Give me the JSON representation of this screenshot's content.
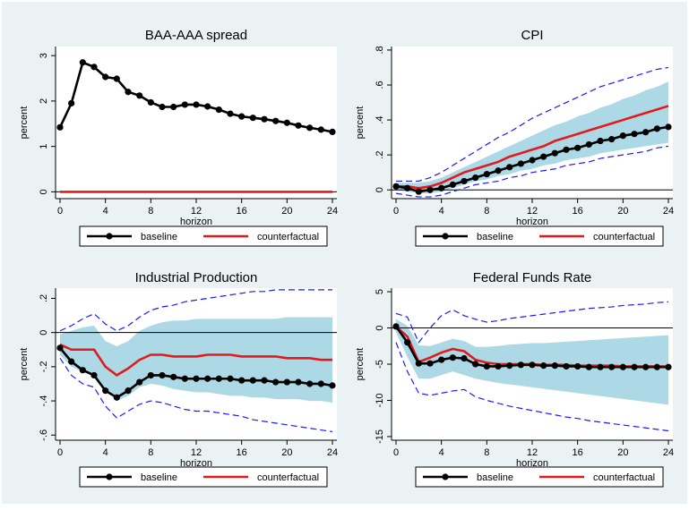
{
  "colors": {
    "background": "#ffffff",
    "panel_bg": "#eaf2f3",
    "plot_bg": "#ffffff",
    "band": "#add8e6",
    "ci_line": "#1a1aff",
    "baseline": "#000000",
    "counterfactual": "#e31a1c",
    "zero_line": "#000000",
    "legend_border": "#000000"
  },
  "chart_data": [
    {
      "type": "line",
      "title": "BAA-AAA spread",
      "xlabel": "horizon",
      "ylabel": "percent",
      "xlim": [
        0,
        24
      ],
      "ylim": [
        -0.15,
        3.2
      ],
      "xticks": [
        0,
        4,
        8,
        12,
        16,
        20,
        24
      ],
      "yticks": [
        0,
        1,
        2,
        3
      ],
      "ytick_labels": [
        "0",
        "1",
        "2",
        "3"
      ],
      "x": [
        0,
        1,
        2,
        3,
        4,
        5,
        6,
        7,
        8,
        9,
        10,
        11,
        12,
        13,
        14,
        15,
        16,
        17,
        18,
        19,
        20,
        21,
        22,
        23,
        24
      ],
      "series": [
        {
          "name": "baseline",
          "values": [
            1.42,
            1.95,
            2.85,
            2.75,
            2.53,
            2.49,
            2.2,
            2.12,
            1.97,
            1.87,
            1.87,
            1.92,
            1.92,
            1.88,
            1.81,
            1.72,
            1.66,
            1.63,
            1.6,
            1.56,
            1.52,
            1.46,
            1.41,
            1.37,
            1.32
          ]
        },
        {
          "name": "counterfactual",
          "values": [
            0,
            0,
            0,
            0,
            0,
            0,
            0,
            0,
            0,
            0,
            0,
            0,
            0,
            0,
            0,
            0,
            0,
            0,
            0,
            0,
            0,
            0,
            0,
            0,
            0
          ]
        }
      ],
      "band_lower": null,
      "band_upper": null,
      "ci_lower": null,
      "ci_upper": null,
      "legend": [
        "baseline",
        "counterfactual"
      ],
      "legend_position": "bottom"
    },
    {
      "type": "line",
      "title": "CPI",
      "xlabel": "horizon",
      "ylabel": "percent",
      "xlim": [
        0,
        24
      ],
      "ylim": [
        -0.05,
        0.82
      ],
      "xticks": [
        0,
        4,
        8,
        12,
        16,
        20,
        24
      ],
      "yticks": [
        0,
        0.2,
        0.4,
        0.6,
        0.8
      ],
      "ytick_labels": [
        "0",
        ".2",
        ".4",
        ".6",
        ".8"
      ],
      "x": [
        0,
        1,
        2,
        3,
        4,
        5,
        6,
        7,
        8,
        9,
        10,
        11,
        12,
        13,
        14,
        15,
        16,
        17,
        18,
        19,
        20,
        21,
        22,
        23,
        24
      ],
      "series": [
        {
          "name": "baseline",
          "values": [
            0.02,
            0.01,
            -0.01,
            0.0,
            0.01,
            0.03,
            0.05,
            0.07,
            0.09,
            0.11,
            0.13,
            0.15,
            0.17,
            0.19,
            0.21,
            0.23,
            0.24,
            0.26,
            0.28,
            0.29,
            0.31,
            0.32,
            0.33,
            0.35,
            0.36
          ]
        },
        {
          "name": "counterfactual",
          "values": [
            0.02,
            0.02,
            0.01,
            0.02,
            0.04,
            0.07,
            0.1,
            0.12,
            0.14,
            0.16,
            0.19,
            0.21,
            0.23,
            0.25,
            0.28,
            0.3,
            0.32,
            0.34,
            0.36,
            0.38,
            0.4,
            0.42,
            0.44,
            0.46,
            0.48
          ]
        }
      ],
      "band_lower": [
        0.0,
        -0.01,
        -0.02,
        -0.02,
        -0.01,
        0.01,
        0.03,
        0.05,
        0.06,
        0.08,
        0.09,
        0.11,
        0.12,
        0.14,
        0.15,
        0.17,
        0.18,
        0.19,
        0.21,
        0.22,
        0.23,
        0.24,
        0.25,
        0.26,
        0.27
      ],
      "band_upper": [
        0.04,
        0.04,
        0.04,
        0.05,
        0.07,
        0.1,
        0.13,
        0.16,
        0.19,
        0.22,
        0.25,
        0.28,
        0.31,
        0.34,
        0.37,
        0.39,
        0.42,
        0.44,
        0.47,
        0.49,
        0.52,
        0.54,
        0.57,
        0.59,
        0.62
      ],
      "ci_lower": [
        -0.02,
        -0.03,
        -0.04,
        -0.04,
        -0.03,
        -0.01,
        0.01,
        0.03,
        0.04,
        0.05,
        0.07,
        0.08,
        0.1,
        0.11,
        0.12,
        0.14,
        0.15,
        0.16,
        0.18,
        0.19,
        0.2,
        0.21,
        0.22,
        0.24,
        0.25
      ],
      "ci_upper": [
        0.05,
        0.05,
        0.05,
        0.07,
        0.1,
        0.14,
        0.18,
        0.22,
        0.26,
        0.3,
        0.33,
        0.37,
        0.41,
        0.44,
        0.47,
        0.5,
        0.53,
        0.56,
        0.59,
        0.61,
        0.63,
        0.65,
        0.67,
        0.69,
        0.7
      ],
      "legend": [
        "baseline",
        "counterfactual"
      ],
      "legend_position": "bottom"
    },
    {
      "type": "line",
      "title": "Industrial Production",
      "xlabel": "horizon",
      "ylabel": "percent",
      "xlim": [
        0,
        24
      ],
      "ylim": [
        -0.63,
        0.26
      ],
      "xticks": [
        0,
        4,
        8,
        12,
        16,
        20,
        24
      ],
      "yticks": [
        -0.6,
        -0.4,
        -0.2,
        0,
        0.2
      ],
      "ytick_labels": [
        "-.6",
        "-.4",
        "-.2",
        "0",
        ".2"
      ],
      "x": [
        0,
        1,
        2,
        3,
        4,
        5,
        6,
        7,
        8,
        9,
        10,
        11,
        12,
        13,
        14,
        15,
        16,
        17,
        18,
        19,
        20,
        21,
        22,
        23,
        24
      ],
      "series": [
        {
          "name": "baseline",
          "values": [
            -0.09,
            -0.17,
            -0.22,
            -0.25,
            -0.34,
            -0.38,
            -0.34,
            -0.29,
            -0.25,
            -0.25,
            -0.26,
            -0.27,
            -0.27,
            -0.27,
            -0.27,
            -0.27,
            -0.28,
            -0.28,
            -0.28,
            -0.29,
            -0.29,
            -0.29,
            -0.3,
            -0.3,
            -0.31
          ]
        },
        {
          "name": "counterfactual",
          "values": [
            -0.07,
            -0.1,
            -0.1,
            -0.1,
            -0.2,
            -0.25,
            -0.21,
            -0.16,
            -0.13,
            -0.13,
            -0.14,
            -0.14,
            -0.14,
            -0.13,
            -0.13,
            -0.13,
            -0.14,
            -0.14,
            -0.14,
            -0.14,
            -0.15,
            -0.15,
            -0.15,
            -0.16,
            -0.16
          ]
        }
      ],
      "band_lower": [
        -0.13,
        -0.2,
        -0.23,
        -0.24,
        -0.33,
        -0.4,
        -0.37,
        -0.32,
        -0.3,
        -0.31,
        -0.33,
        -0.34,
        -0.35,
        -0.35,
        -0.36,
        -0.37,
        -0.37,
        -0.38,
        -0.38,
        -0.39,
        -0.39,
        -0.39,
        -0.4,
        -0.4,
        -0.41
      ],
      "band_upper": [
        -0.01,
        0.01,
        0.03,
        0.04,
        -0.05,
        -0.08,
        -0.05,
        0.01,
        0.04,
        0.06,
        0.07,
        0.07,
        0.08,
        0.08,
        0.08,
        0.08,
        0.08,
        0.08,
        0.08,
        0.08,
        0.09,
        0.09,
        0.09,
        0.09,
        0.09
      ],
      "ci_lower": [
        -0.15,
        -0.25,
        -0.3,
        -0.32,
        -0.43,
        -0.5,
        -0.46,
        -0.42,
        -0.4,
        -0.41,
        -0.43,
        -0.45,
        -0.46,
        -0.46,
        -0.47,
        -0.48,
        -0.49,
        -0.51,
        -0.52,
        -0.53,
        -0.54,
        -0.55,
        -0.56,
        -0.57,
        -0.58
      ],
      "ci_upper": [
        0.01,
        0.04,
        0.08,
        0.11,
        0.05,
        0.01,
        0.04,
        0.09,
        0.13,
        0.15,
        0.16,
        0.18,
        0.19,
        0.2,
        0.21,
        0.22,
        0.23,
        0.24,
        0.24,
        0.25,
        0.25,
        0.25,
        0.25,
        0.25,
        0.25
      ],
      "legend": [
        "baseline",
        "counterfactual"
      ],
      "legend_position": "bottom"
    },
    {
      "type": "line",
      "title": "Federal Funds Rate",
      "xlabel": "horizon",
      "ylabel": "percent",
      "xlim": [
        0,
        24
      ],
      "ylim": [
        -15.5,
        5.5
      ],
      "xticks": [
        0,
        4,
        8,
        12,
        16,
        20,
        24
      ],
      "yticks": [
        -15,
        -10,
        -5,
        0,
        5
      ],
      "ytick_labels": [
        "-15",
        "-10",
        "-5",
        "0",
        "5"
      ],
      "x": [
        0,
        1,
        2,
        3,
        4,
        5,
        6,
        7,
        8,
        9,
        10,
        11,
        12,
        13,
        14,
        15,
        16,
        17,
        18,
        19,
        20,
        21,
        22,
        23,
        24
      ],
      "series": [
        {
          "name": "baseline",
          "values": [
            0.2,
            -2.0,
            -4.9,
            -4.9,
            -4.4,
            -4.1,
            -4.2,
            -5.0,
            -5.3,
            -5.3,
            -5.2,
            -5.1,
            -5.1,
            -5.2,
            -5.2,
            -5.3,
            -5.3,
            -5.4,
            -5.4,
            -5.4,
            -5.4,
            -5.4,
            -5.4,
            -5.4,
            -5.4
          ]
        },
        {
          "name": "counterfactual",
          "values": [
            0.2,
            -1.2,
            -4.7,
            -4.1,
            -3.4,
            -2.9,
            -3.2,
            -4.4,
            -4.8,
            -5.0,
            -5.0,
            -5.0,
            -5.0,
            -5.1,
            -5.1,
            -5.1,
            -5.2,
            -5.2,
            -5.2,
            -5.2,
            -5.3,
            -5.3,
            -5.3,
            -5.3,
            -5.3
          ]
        }
      ],
      "band_lower": [
        -0.6,
        -4.0,
        -7.0,
        -7.0,
        -6.5,
        -6.0,
        -6.5,
        -7.0,
        -7.3,
        -7.6,
        -7.8,
        -8.0,
        -8.2,
        -8.4,
        -8.6,
        -8.8,
        -9.0,
        -9.2,
        -9.4,
        -9.6,
        -9.8,
        -10.0,
        -10.2,
        -10.4,
        -10.6
      ],
      "band_upper": [
        1.2,
        0.3,
        -2.4,
        -2.5,
        -2.0,
        -1.5,
        -1.8,
        -2.6,
        -2.6,
        -2.5,
        -2.3,
        -2.2,
        -2.1,
        -2.1,
        -2.0,
        -1.9,
        -1.8,
        -1.7,
        -1.6,
        -1.5,
        -1.4,
        -1.3,
        -1.2,
        -1.1,
        -1.0
      ],
      "ci_lower": [
        -2.0,
        -6.0,
        -9.0,
        -9.3,
        -9.0,
        -8.7,
        -8.5,
        -9.5,
        -10.0,
        -10.4,
        -10.8,
        -11.1,
        -11.4,
        -11.7,
        -12.0,
        -12.3,
        -12.5,
        -12.8,
        -13.0,
        -13.2,
        -13.4,
        -13.6,
        -13.8,
        -14.0,
        -14.2
      ],
      "ci_upper": [
        2.0,
        1.5,
        -2.0,
        0.0,
        1.7,
        2.5,
        1.7,
        1.2,
        0.8,
        1.0,
        1.3,
        1.5,
        1.7,
        1.9,
        2.1,
        2.3,
        2.5,
        2.7,
        2.8,
        2.9,
        3.1,
        3.2,
        3.3,
        3.5,
        3.6
      ],
      "legend": [
        "baseline",
        "counterfactual"
      ],
      "legend_position": "bottom"
    }
  ]
}
